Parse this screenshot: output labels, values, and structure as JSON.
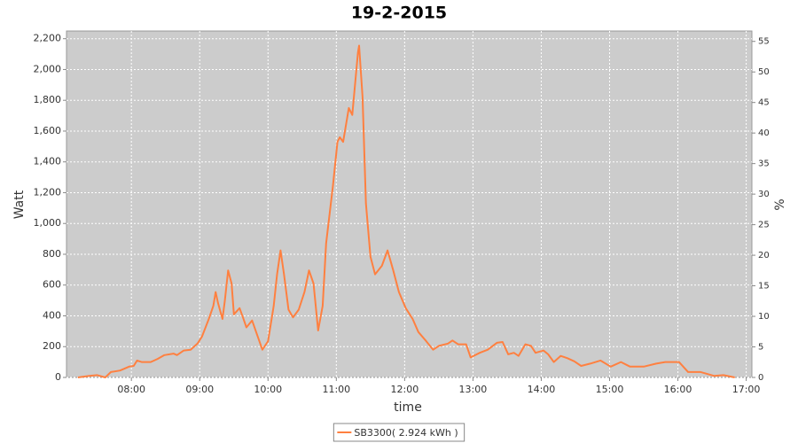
{
  "chart_data": {
    "type": "line",
    "title": "19-2-2015",
    "x_label": "time",
    "y_label": "Watt",
    "y2_label": "%",
    "x": [
      "07:13",
      "07:23",
      "07:30",
      "07:37",
      "07:42",
      "07:50",
      "07:58",
      "08:02",
      "08:05",
      "08:09",
      "08:17",
      "08:23",
      "08:29",
      "08:37",
      "08:40",
      "08:46",
      "08:52",
      "08:58",
      "09:02",
      "09:08",
      "09:12",
      "09:14",
      "09:16",
      "09:20",
      "09:22",
      "09:25",
      "09:28",
      "09:30",
      "09:35",
      "09:38",
      "09:41",
      "09:46",
      "09:51",
      "09:55",
      "10:00",
      "10:05",
      "10:08",
      "10:11",
      "10:14",
      "10:18",
      "10:22",
      "10:27",
      "10:32",
      "10:36",
      "10:40",
      "10:44",
      "10:48",
      "10:51",
      "10:57",
      "11:01",
      "11:03",
      "11:06",
      "11:11",
      "11:14",
      "11:19",
      "11:20",
      "11:23",
      "11:26",
      "11:30",
      "11:34",
      "11:40",
      "11:45",
      "11:50",
      "11:55",
      "12:01",
      "12:07",
      "12:12",
      "12:19",
      "12:25",
      "12:30",
      "12:38",
      "12:42",
      "12:47",
      "12:54",
      "12:58",
      "13:06",
      "13:13",
      "13:21",
      "13:26",
      "13:31",
      "13:36",
      "13:40",
      "13:46",
      "13:51",
      "13:55",
      "14:02",
      "14:06",
      "14:11",
      "14:17",
      "14:23",
      "14:29",
      "14:35",
      "14:43",
      "14:52",
      "15:01",
      "15:10",
      "15:18",
      "15:30",
      "15:41",
      "15:49",
      "16:01",
      "16:09",
      "16:20",
      "16:32",
      "16:40",
      "16:50"
    ],
    "series": [
      {
        "name": "SB3300( 2.924 kWh )",
        "color": "#ff8040",
        "values": [
          0,
          10,
          15,
          0,
          35,
          45,
          70,
          75,
          110,
          100,
          100,
          120,
          145,
          155,
          145,
          175,
          180,
          220,
          265,
          380,
          465,
          555,
          485,
          380,
          495,
          695,
          610,
          410,
          450,
          390,
          325,
          370,
          265,
          180,
          235,
          465,
          670,
          825,
          670,
          440,
          390,
          440,
          555,
          695,
          610,
          305,
          465,
          870,
          1245,
          1530,
          1560,
          1530,
          1750,
          1705,
          2110,
          2155,
          1820,
          1130,
          785,
          670,
          725,
          825,
          695,
          555,
          450,
          380,
          295,
          235,
          180,
          205,
          220,
          240,
          215,
          215,
          130,
          160,
          180,
          225,
          230,
          150,
          160,
          140,
          215,
          205,
          160,
          175,
          150,
          100,
          140,
          125,
          105,
          75,
          90,
          110,
          70,
          100,
          70,
          70,
          90,
          100,
          100,
          35,
          35,
          10,
          15,
          0
        ]
      }
    ],
    "xlim": [
      "07:03",
      "17:05"
    ],
    "xticks": [
      "08:00",
      "09:00",
      "10:00",
      "11:00",
      "12:00",
      "13:00",
      "14:00",
      "15:00",
      "16:00",
      "17:00"
    ],
    "ylim": [
      0,
      2250
    ],
    "yticks": [
      0,
      200,
      400,
      600,
      800,
      {
        "value": 1000,
        "label": "1,000"
      },
      {
        "value": 1200,
        "label": "1,200"
      },
      {
        "value": 1400,
        "label": "1,400"
      },
      {
        "value": 1600,
        "label": "1,600"
      },
      {
        "value": 1800,
        "label": "1,800"
      },
      {
        "value": 2000,
        "label": "2,000"
      },
      {
        "value": 2200,
        "label": "2,200"
      }
    ],
    "y2lim": [
      0,
      56.7
    ],
    "y2ticks": [
      0,
      5,
      10,
      15,
      20,
      25,
      30,
      35,
      40,
      45,
      50,
      55
    ],
    "grid": true,
    "legend": "bottom"
  }
}
